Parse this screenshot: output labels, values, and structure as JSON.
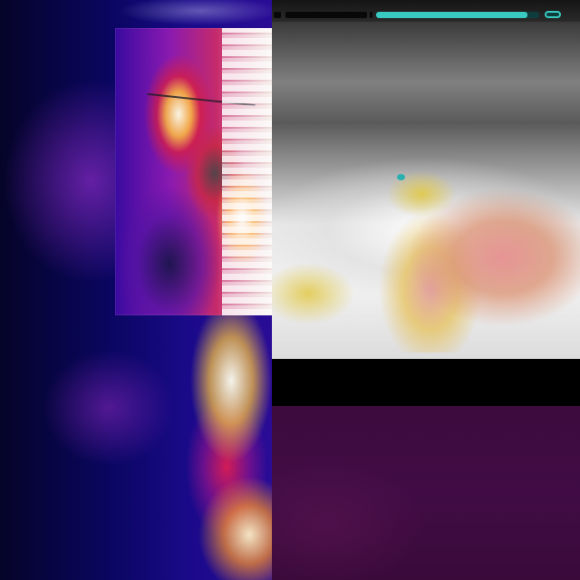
{
  "screen": {
    "panels": [
      {
        "id": "left-thermal",
        "palette": "ironbow"
      },
      {
        "id": "left-inset",
        "palette": "ironbow-contrast"
      },
      {
        "id": "right-top-thermal",
        "palette": "grayscale-hot-overlay"
      },
      {
        "id": "right-bottom",
        "palette": "purple"
      }
    ],
    "progress": {
      "fraction": 0.93,
      "color": "#38c9c1",
      "track_color": "#0f3d3d"
    },
    "marker_color": "#2ab0b0",
    "colors": {
      "background": "#000000",
      "status_bar": "#1f1f1f",
      "purple_panel": "#3d0b3e"
    }
  }
}
